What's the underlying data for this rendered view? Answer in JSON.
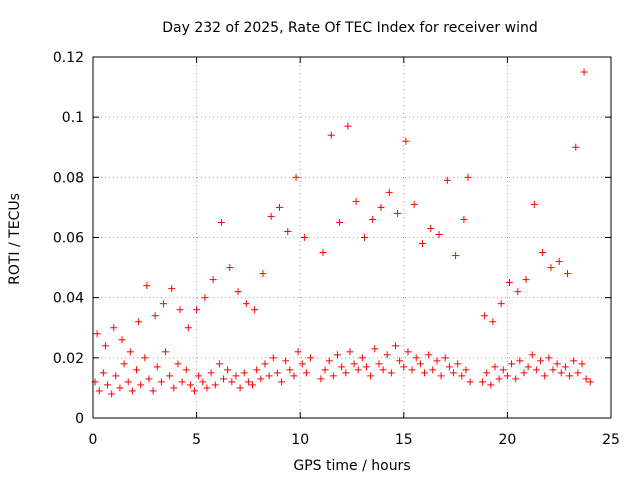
{
  "chart_data": {
    "type": "scatter",
    "title": "Day 232 of 2025, Rate Of TEC Index for receiver wind",
    "xlabel": "GPS time / hours",
    "ylabel": "ROTI / TECUs",
    "xlim": [
      0,
      25
    ],
    "ylim": [
      0,
      0.12
    ],
    "x_ticks": [
      0,
      5,
      10,
      15,
      20,
      25
    ],
    "x_tick_labels": [
      "0",
      "5",
      "10",
      "15",
      "20",
      "25"
    ],
    "y_ticks": [
      0,
      0.02,
      0.04,
      0.06,
      0.08,
      0.1,
      0.12
    ],
    "y_tick_labels": [
      "0",
      "0.02",
      "0.04",
      "0.06",
      "0.08",
      "0.1",
      "0.12"
    ],
    "grid": true,
    "legend": "none",
    "marker": "plus",
    "color": "#ff0000",
    "series": [
      {
        "x": [
          0.1,
          0.3,
          0.5,
          0.7,
          0.9,
          1.1,
          1.3,
          1.5,
          1.7,
          1.9,
          2.1,
          2.3,
          2.5,
          2.7,
          2.9,
          3.1,
          3.3,
          3.5,
          3.7,
          3.9,
          4.1,
          4.3,
          4.5,
          4.7,
          4.9,
          5.1,
          5.3,
          5.5,
          5.7,
          5.9,
          6.1,
          6.3,
          6.5,
          6.7,
          6.9,
          7.1,
          7.3,
          7.5,
          7.7,
          7.9,
          8.1,
          8.3,
          8.5,
          8.7,
          8.9,
          9.1,
          9.3,
          9.5,
          9.7,
          9.9,
          10.1,
          10.3,
          10.5,
          11.0,
          11.2,
          11.4,
          11.6,
          11.8,
          12.0,
          12.2,
          12.4,
          12.6,
          12.8,
          13.0,
          13.2,
          13.4,
          13.6,
          13.8,
          14.0,
          14.2,
          14.4,
          14.6,
          14.8,
          15.0,
          15.2,
          15.4,
          15.6,
          15.8,
          16.0,
          16.2,
          16.4,
          16.6,
          16.8,
          17.0,
          17.2,
          17.4,
          17.6,
          17.8,
          18.0,
          18.2,
          18.8,
          19.0,
          19.2,
          19.4,
          19.6,
          19.8,
          20.0,
          20.2,
          20.4,
          20.6,
          20.8,
          21.0,
          21.2,
          21.4,
          21.6,
          21.8,
          22.0,
          22.2,
          22.4,
          22.6,
          22.8,
          23.0,
          23.2,
          23.4,
          23.6,
          23.8,
          24.0,
          0.2,
          0.6,
          1.0,
          1.4,
          1.8,
          2.2,
          2.6,
          3.0,
          3.4,
          3.8,
          4.2,
          4.6,
          5.0,
          5.4,
          5.8,
          6.2,
          6.6,
          7.0,
          7.4,
          7.8,
          8.2,
          8.6,
          9.0,
          9.4,
          9.8,
          10.2,
          11.1,
          11.5,
          11.9,
          12.3,
          12.7,
          13.1,
          13.5,
          13.9,
          14.3,
          14.7,
          15.1,
          15.5,
          15.9,
          16.3,
          16.7,
          17.1,
          17.5,
          17.9,
          18.1,
          18.9,
          19.3,
          19.7,
          20.1,
          20.5,
          20.9,
          21.3,
          21.7,
          22.1,
          22.5,
          22.9,
          23.3,
          23.7
        ],
        "y": [
          0.012,
          0.009,
          0.015,
          0.011,
          0.008,
          0.014,
          0.01,
          0.018,
          0.012,
          0.009,
          0.016,
          0.011,
          0.02,
          0.013,
          0.009,
          0.017,
          0.012,
          0.022,
          0.014,
          0.01,
          0.018,
          0.012,
          0.016,
          0.011,
          0.009,
          0.014,
          0.012,
          0.01,
          0.015,
          0.011,
          0.018,
          0.013,
          0.016,
          0.012,
          0.014,
          0.01,
          0.015,
          0.012,
          0.011,
          0.016,
          0.013,
          0.018,
          0.014,
          0.02,
          0.015,
          0.012,
          0.019,
          0.016,
          0.014,
          0.022,
          0.018,
          0.015,
          0.02,
          0.013,
          0.016,
          0.019,
          0.014,
          0.021,
          0.017,
          0.015,
          0.022,
          0.018,
          0.016,
          0.02,
          0.017,
          0.014,
          0.023,
          0.018,
          0.016,
          0.021,
          0.015,
          0.024,
          0.019,
          0.017,
          0.022,
          0.016,
          0.02,
          0.018,
          0.015,
          0.021,
          0.016,
          0.019,
          0.014,
          0.02,
          0.017,
          0.015,
          0.018,
          0.014,
          0.016,
          0.012,
          0.012,
          0.015,
          0.011,
          0.017,
          0.013,
          0.016,
          0.014,
          0.018,
          0.013,
          0.019,
          0.015,
          0.017,
          0.021,
          0.016,
          0.019,
          0.014,
          0.02,
          0.016,
          0.018,
          0.015,
          0.017,
          0.014,
          0.019,
          0.015,
          0.018,
          0.013,
          0.012,
          0.028,
          0.024,
          0.03,
          0.026,
          0.022,
          0.032,
          0.044,
          0.034,
          0.038,
          0.043,
          0.036,
          0.03,
          0.036,
          0.04,
          0.046,
          0.065,
          0.05,
          0.042,
          0.038,
          0.036,
          0.048,
          0.067,
          0.07,
          0.062,
          0.08,
          0.06,
          0.055,
          0.094,
          0.065,
          0.097,
          0.072,
          0.06,
          0.066,
          0.07,
          0.075,
          0.068,
          0.092,
          0.071,
          0.058,
          0.063,
          0.061,
          0.079,
          0.054,
          0.066,
          0.08,
          0.034,
          0.032,
          0.038,
          0.045,
          0.042,
          0.046,
          0.071,
          0.055,
          0.05,
          0.052,
          0.048,
          0.09,
          0.115
        ]
      }
    ]
  }
}
